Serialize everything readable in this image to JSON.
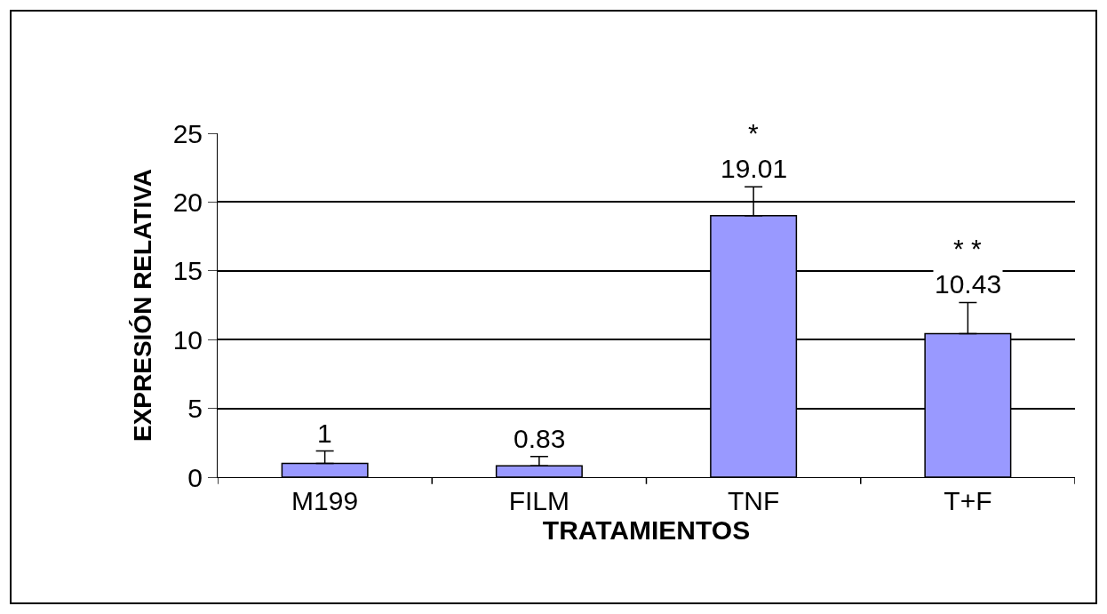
{
  "chart_data": {
    "type": "bar",
    "xlabel": "TRATAMIENTOS",
    "ylabel": "EXPRESIÓN RELATIVA",
    "categories": [
      "M199",
      "FILM",
      "TNF",
      "T+F"
    ],
    "values": [
      1,
      0.83,
      19.01,
      10.43
    ],
    "errors": [
      [
        1,
        1.9
      ],
      [
        0.83,
        1.5
      ],
      [
        19.01,
        21.1
      ],
      [
        10.43,
        12.7
      ]
    ],
    "color": "#9999ff",
    "data_labels": true,
    "ylim": [
      0,
      25
    ],
    "yticks": [
      0,
      5,
      10,
      15,
      20,
      25
    ],
    "grid": "y",
    "annotations": [
      "*",
      "* *"
    ]
  }
}
